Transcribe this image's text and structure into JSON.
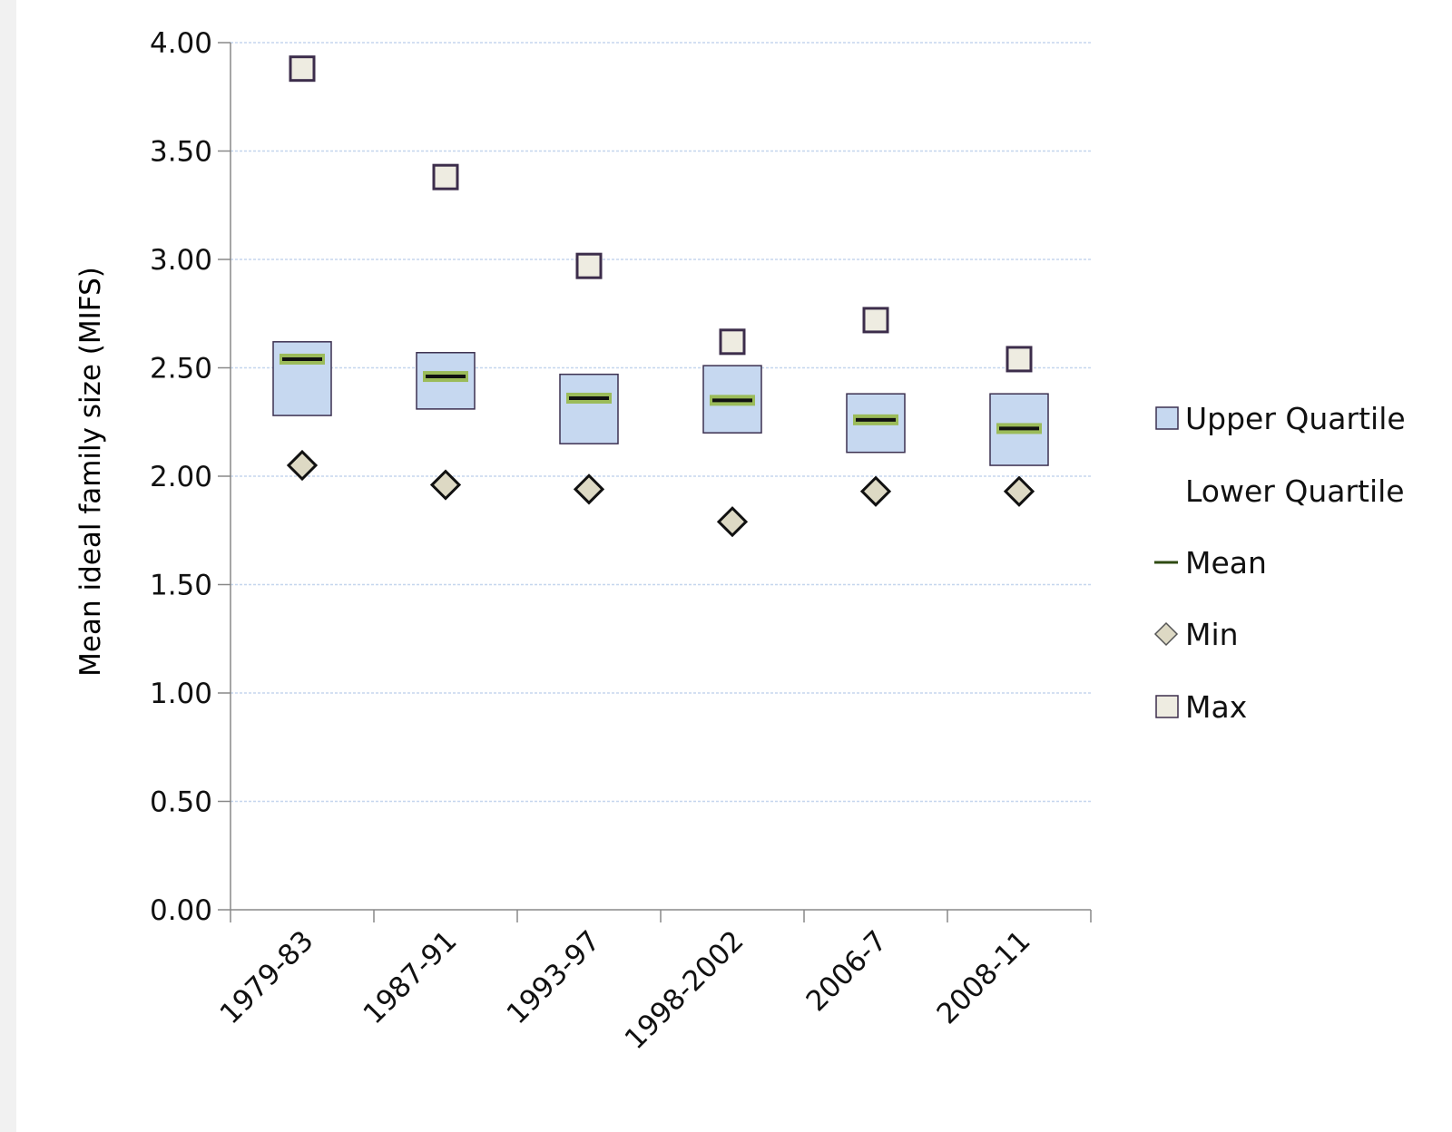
{
  "chart_data": {
    "type": "box",
    "categories": [
      "1979-83",
      "1987-91",
      "1993-97",
      "1998-2002",
      "2006-7",
      "2008-11"
    ],
    "series": [
      {
        "name": "Upper Quartile",
        "values": [
          2.62,
          2.57,
          2.47,
          2.51,
          2.38,
          2.38
        ]
      },
      {
        "name": "Lower Quartile",
        "values": [
          2.28,
          2.31,
          2.15,
          2.2,
          2.11,
          2.05
        ]
      },
      {
        "name": "Mean",
        "values": [
          2.54,
          2.46,
          2.36,
          2.35,
          2.26,
          2.22
        ]
      },
      {
        "name": "Min",
        "values": [
          2.05,
          1.96,
          1.94,
          1.79,
          1.93,
          1.93
        ]
      },
      {
        "name": "Max",
        "values": [
          3.88,
          3.38,
          2.97,
          2.62,
          2.72,
          2.54
        ]
      }
    ],
    "ylabel": "Mean ideal family size (MIFS)",
    "xlabel": "",
    "ylim": [
      0,
      4
    ],
    "yticks": [
      "0.00",
      "0.50",
      "1.00",
      "1.50",
      "2.00",
      "2.50",
      "3.00",
      "3.50",
      "4.00"
    ],
    "grid": true,
    "legend_position": "right",
    "colors": {
      "box_fill": "#c6d8f0",
      "box_stroke": "#3c3050",
      "mean_bar": "#111111",
      "mean_highlight": "#9bbb59",
      "marker_fill": "#ddd9c4",
      "max_fill": "#eeece1",
      "marker_stroke": "#111111",
      "max_stroke": "#3c2d4b",
      "grid": "#c5d6ee",
      "axis": "#888888"
    }
  }
}
